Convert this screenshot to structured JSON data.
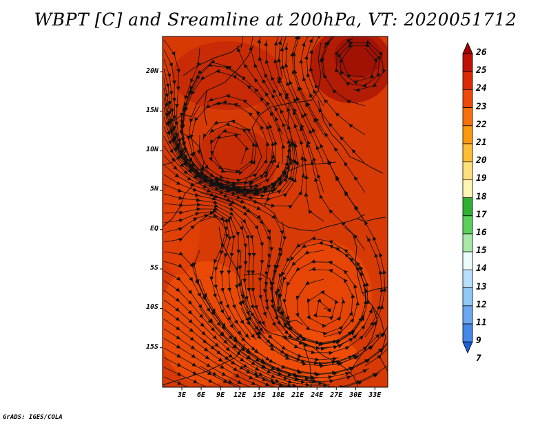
{
  "title": "WBPT [C] and Sreamline at 200hPa, VT: 2020051712",
  "footer": "GrADS: IGES/COLA",
  "map": {
    "lat_labels": [
      "20N",
      "15N",
      "10N",
      "5N",
      "EQ",
      "5S",
      "10S",
      "15S"
    ],
    "lon_labels": [
      "3E",
      "6E",
      "9E",
      "12E",
      "15E",
      "18E",
      "21E",
      "24E",
      "27E",
      "30E",
      "33E"
    ],
    "lat_values": [
      20,
      15,
      10,
      5,
      0,
      -5,
      -10,
      -15
    ],
    "lon_values": [
      3,
      6,
      9,
      12,
      15,
      18,
      21,
      24,
      27,
      30,
      33
    ],
    "lon_range": [
      0,
      35
    ],
    "lat_range": [
      -20,
      24.5
    ],
    "base_color": "#d83a05"
  },
  "colorbar": {
    "labels": [
      "26",
      "25",
      "24",
      "23",
      "22",
      "21",
      "20",
      "19",
      "18",
      "17",
      "16",
      "15",
      "14",
      "13",
      "12",
      "11",
      "9",
      "7"
    ],
    "colors": [
      "#a00000",
      "#c01204",
      "#dc2a05",
      "#f04806",
      "#f87008",
      "#fc9a0c",
      "#ffbe34",
      "#ffe07a",
      "#fff6b4",
      "#30b030",
      "#5cd05c",
      "#a8e8a8",
      "#eafcfc",
      "#b8e0fc",
      "#90c8f8",
      "#6aa8f0",
      "#4488e8",
      "#1e60d8"
    ]
  }
}
